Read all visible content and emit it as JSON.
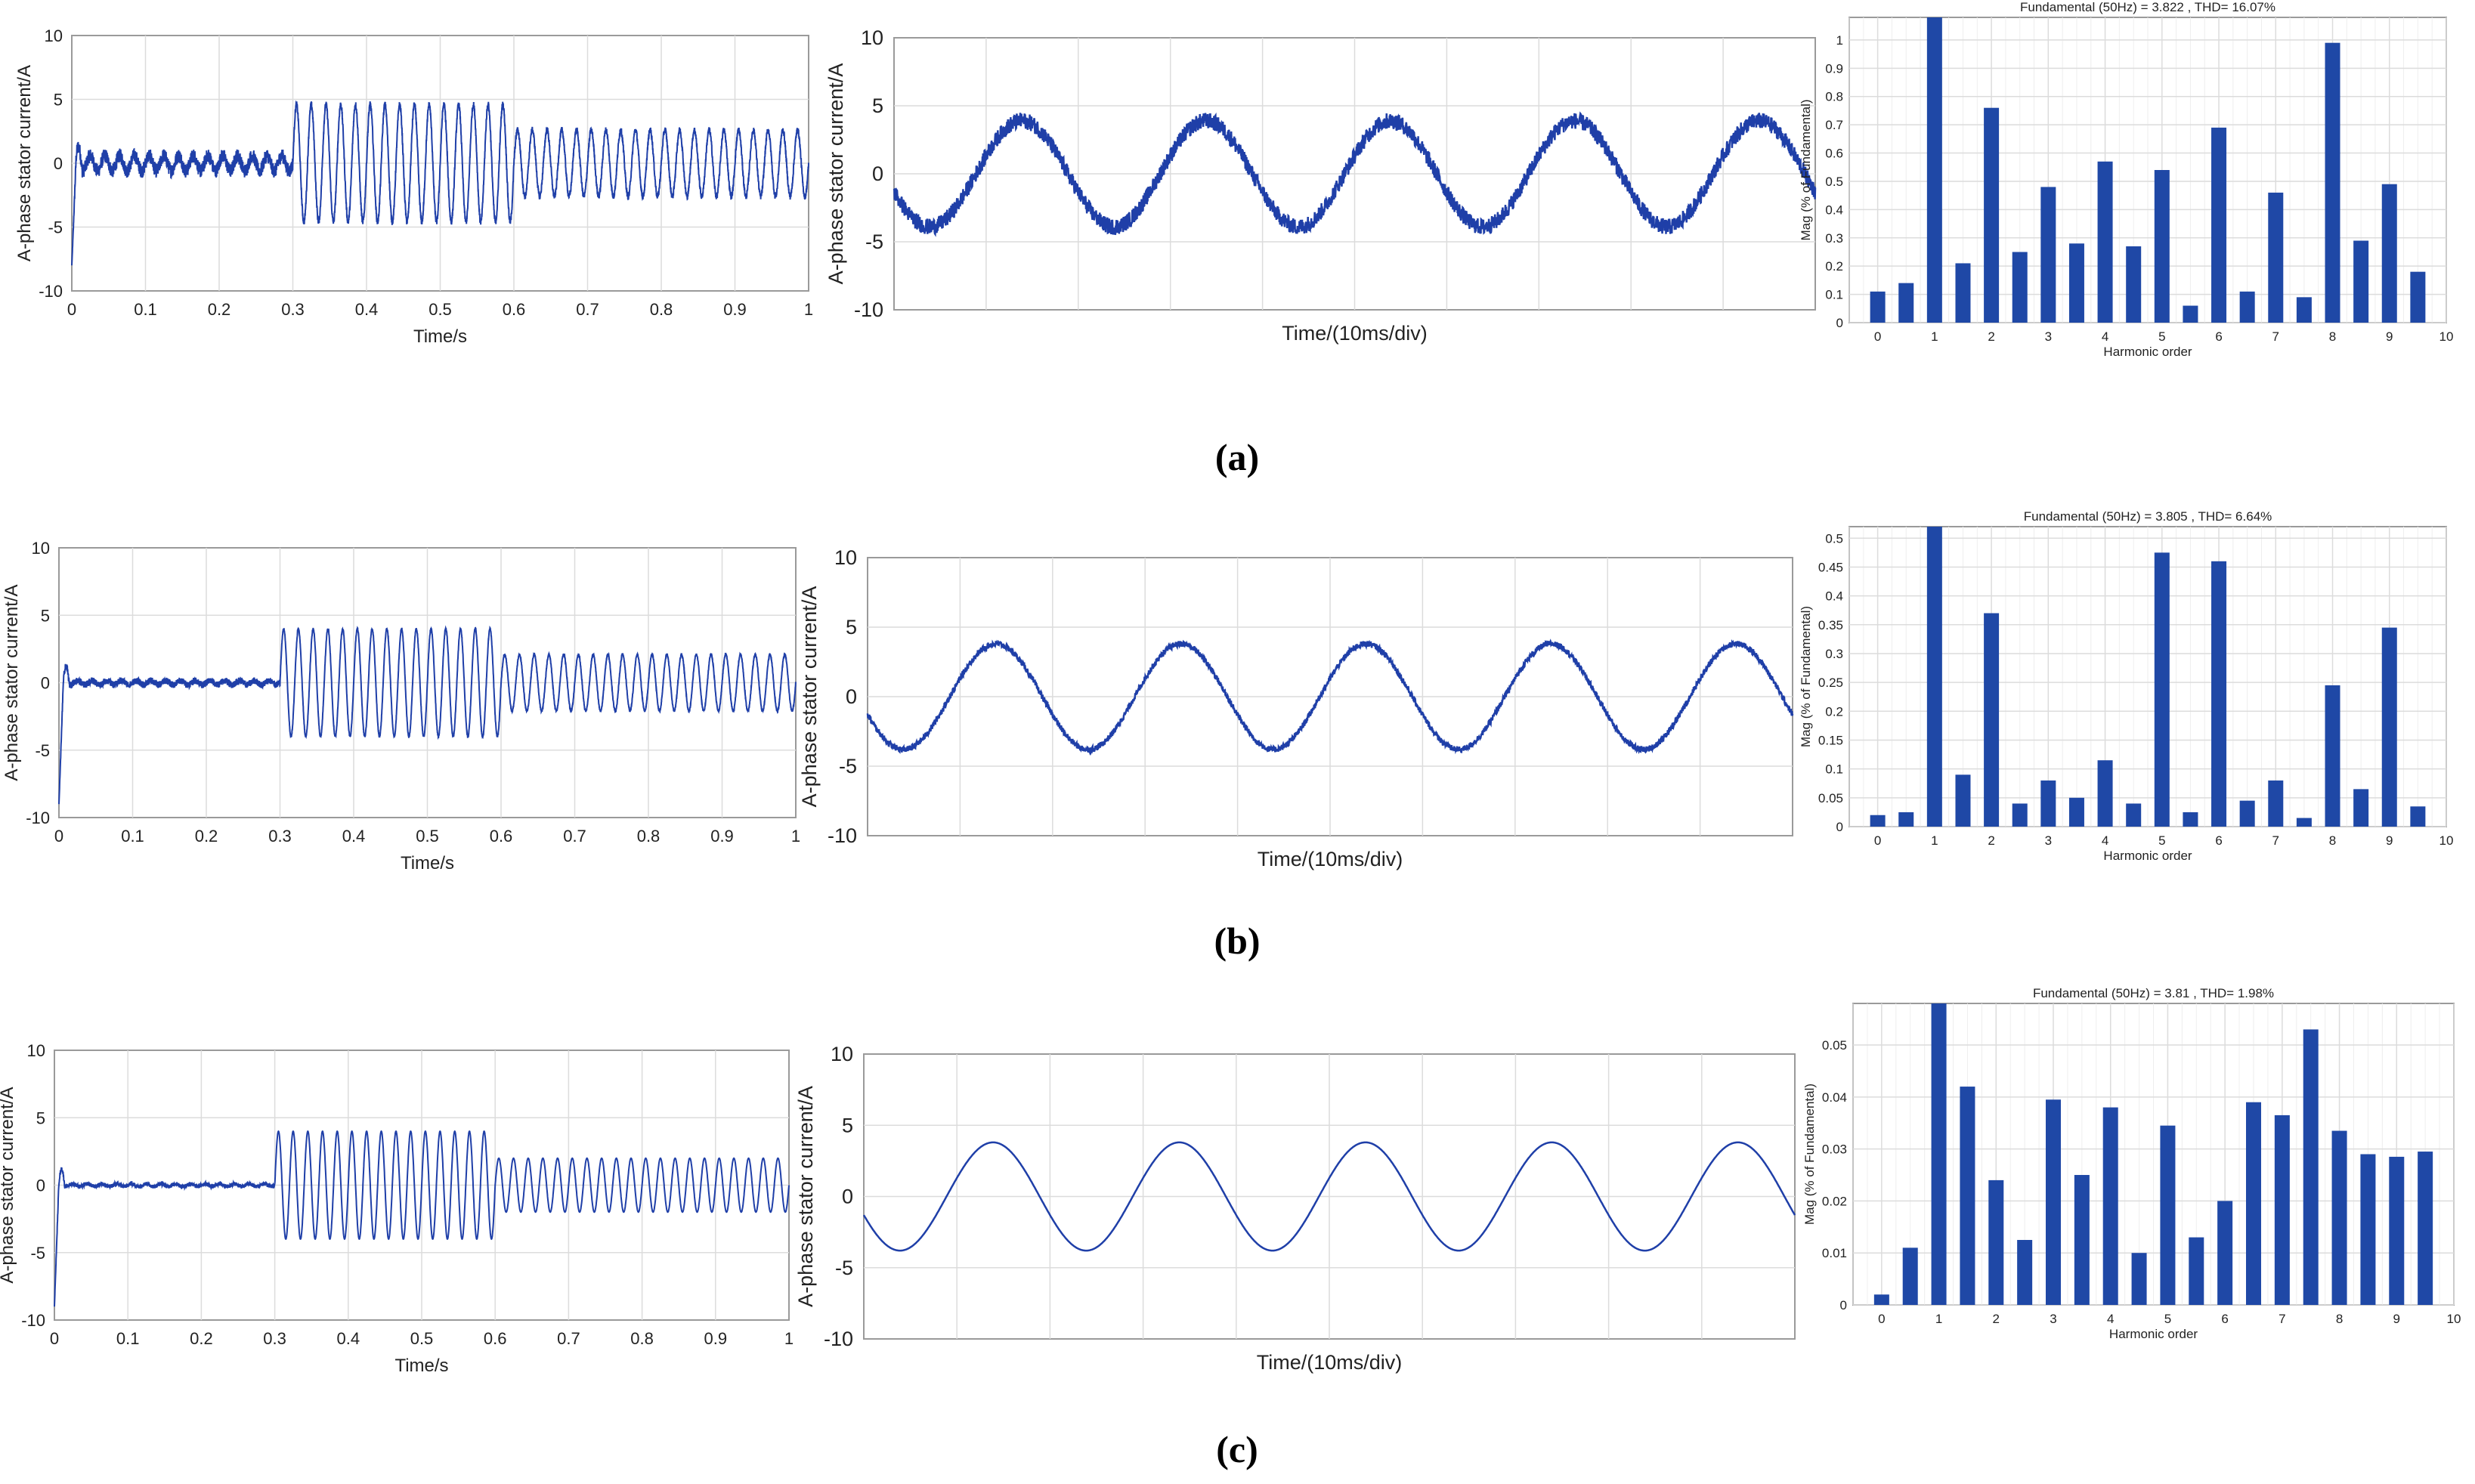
{
  "colors": {
    "trace": "#1f3fa8",
    "bar": "#1f48a6",
    "grid": "#dcdcdc",
    "frame": "#9a9a9a"
  },
  "captions": [
    "(a)",
    "(b)",
    "(c)"
  ],
  "rows": [
    {
      "caption": "(a)",
      "time_plot": {
        "ylabel": "A-phase stator current/A",
        "xlabel": "Time/s",
        "xlim": [
          0,
          1
        ],
        "ylim": [
          -10,
          10
        ],
        "xticks": [
          "0",
          "0.1",
          "0.2",
          "0.3",
          "0.4",
          "0.5",
          "0.6",
          "0.7",
          "0.8",
          "0.9",
          "1"
        ],
        "yticks": [
          "10",
          "5",
          "0",
          "-5",
          "-10"
        ],
        "segments": [
          {
            "t": [
              0,
              0.3
            ],
            "amplitude": 0.6,
            "noise": 0.55
          },
          {
            "t": [
              0.3,
              0.6
            ],
            "amplitude": 4.6,
            "noise": 0.25
          },
          {
            "t": [
              0.6,
              1.0
            ],
            "amplitude": 2.6,
            "noise": 0.25
          }
        ],
        "startup_spike": -8
      },
      "zoom_plot": {
        "ylabel": "A-phase stator current/A",
        "xlabel": "Time/(10ms/div)",
        "ylim": [
          -10,
          10
        ],
        "yticks": [
          "10",
          "5",
          "0",
          "-5",
          "-10"
        ],
        "amplitude": 3.9,
        "noise": 0.6,
        "cycles": 5
      },
      "fft_plot": {
        "title": "Fundamental (50Hz) = 3.822 , THD= 16.07%",
        "ylabel": "Mag (% of Fundamental)",
        "xlabel": "Harmonic order",
        "ylim": [
          0,
          1.08
        ],
        "yticks": [
          "0",
          "0.1",
          "0.2",
          "0.3",
          "0.4",
          "0.5",
          "0.6",
          "0.7",
          "0.8",
          "0.9",
          "1"
        ],
        "xticks": [
          "0",
          "1",
          "2",
          "3",
          "4",
          "5",
          "6",
          "7",
          "8",
          "9",
          "10"
        ]
      }
    },
    {
      "caption": "(b)",
      "time_plot": {
        "ylabel": "A-phase stator current/A",
        "xlabel": "Time/s",
        "xlim": [
          0,
          1
        ],
        "ylim": [
          -10,
          10
        ],
        "xticks": [
          "0",
          "0.1",
          "0.2",
          "0.3",
          "0.4",
          "0.5",
          "0.6",
          "0.7",
          "0.8",
          "0.9",
          "1"
        ],
        "yticks": [
          "10",
          "5",
          "0",
          "-5",
          "-10"
        ],
        "segments": [
          {
            "t": [
              0,
              0.3
            ],
            "amplitude": 0.15,
            "noise": 0.25
          },
          {
            "t": [
              0.3,
              0.6
            ],
            "amplitude": 4.0,
            "noise": 0.08
          },
          {
            "t": [
              0.6,
              1.0
            ],
            "amplitude": 2.1,
            "noise": 0.08
          }
        ],
        "startup_spike": -9
      },
      "zoom_plot": {
        "ylabel": "A-phase stator current/A",
        "xlabel": "Time/(10ms/div)",
        "ylim": [
          -10,
          10
        ],
        "yticks": [
          "10",
          "5",
          "0",
          "-5",
          "-10"
        ],
        "amplitude": 3.8,
        "noise": 0.22,
        "cycles": 5
      },
      "fft_plot": {
        "title": "Fundamental (50Hz) = 3.805 , THD= 6.64%",
        "ylabel": "Mag (% of Fundamental)",
        "xlabel": "Harmonic order",
        "ylim": [
          0,
          0.52
        ],
        "yticks": [
          "0",
          "0.05",
          "0.1",
          "0.15",
          "0.2",
          "0.25",
          "0.3",
          "0.35",
          "0.4",
          "0.45",
          "0.5"
        ],
        "xticks": [
          "0",
          "1",
          "2",
          "3",
          "4",
          "5",
          "6",
          "7",
          "8",
          "9",
          "10"
        ]
      }
    },
    {
      "caption": "(c)",
      "time_plot": {
        "ylabel": "A-phase stator current/A",
        "xlabel": "Time/s",
        "xlim": [
          0,
          1
        ],
        "ylim": [
          -10,
          10
        ],
        "xticks": [
          "0",
          "0.1",
          "0.2",
          "0.3",
          "0.4",
          "0.5",
          "0.6",
          "0.7",
          "0.8",
          "0.9",
          "1"
        ],
        "yticks": [
          "10",
          "5",
          "0",
          "-5",
          "-10"
        ],
        "segments": [
          {
            "t": [
              0,
              0.3
            ],
            "amplitude": 0.1,
            "noise": 0.15
          },
          {
            "t": [
              0.3,
              0.6
            ],
            "amplitude": 4.0,
            "noise": 0.0
          },
          {
            "t": [
              0.6,
              1.0
            ],
            "amplitude": 2.0,
            "noise": 0.0
          }
        ],
        "startup_spike": -9
      },
      "zoom_plot": {
        "ylabel": "A-phase stator current/A",
        "xlabel": "Time/(10ms/div)",
        "ylim": [
          -10,
          10
        ],
        "yticks": [
          "10",
          "5",
          "0",
          "-5",
          "-10"
        ],
        "amplitude": 3.8,
        "noise": 0.0,
        "cycles": 5
      },
      "fft_plot": {
        "title": "Fundamental (50Hz) = 3.81 , THD= 1.98%",
        "ylabel": "Mag (% of Fundamental)",
        "xlabel": "Harmonic order",
        "ylim": [
          0,
          0.058
        ],
        "yticks": [
          "0",
          "0.01",
          "0.02",
          "0.03",
          "0.04",
          "0.05"
        ],
        "xticks": [
          "0",
          "1",
          "2",
          "3",
          "4",
          "5",
          "6",
          "7",
          "8",
          "9",
          "10"
        ]
      }
    }
  ],
  "chart_data": [
    {
      "type": "bar",
      "title": "Fundamental (50Hz) = 3.822 , THD= 16.07%",
      "xlabel": "Harmonic order",
      "ylabel": "Mag (% of Fundamental)",
      "x": [
        0,
        0.5,
        1,
        1.5,
        2,
        2.5,
        3,
        3.5,
        4,
        4.5,
        5,
        5.5,
        6,
        6.5,
        7,
        7.5,
        8,
        8.5,
        9,
        9.5
      ],
      "values": [
        0.11,
        0.14,
        1.08,
        0.21,
        0.76,
        0.25,
        0.48,
        0.28,
        0.57,
        0.27,
        0.54,
        0.06,
        0.69,
        0.11,
        0.46,
        0.09,
        0.99,
        0.29,
        0.49,
        0.18
      ],
      "ylim": [
        0,
        1.08
      ],
      "xlim": [
        -0.5,
        10
      ],
      "grid": true
    },
    {
      "type": "bar",
      "title": "Fundamental (50Hz) = 3.805 , THD= 6.64%",
      "xlabel": "Harmonic order",
      "ylabel": "Mag (% of Fundamental)",
      "x": [
        0,
        0.5,
        1,
        1.5,
        2,
        2.5,
        3,
        3.5,
        4,
        4.5,
        5,
        5.5,
        6,
        6.5,
        7,
        7.5,
        8,
        8.5,
        9,
        9.5
      ],
      "values": [
        0.02,
        0.025,
        0.52,
        0.09,
        0.37,
        0.04,
        0.08,
        0.05,
        0.115,
        0.04,
        0.475,
        0.025,
        0.46,
        0.045,
        0.08,
        0.015,
        0.245,
        0.065,
        0.345,
        0.035
      ],
      "ylim": [
        0,
        0.52
      ],
      "xlim": [
        -0.5,
        10
      ],
      "grid": true
    },
    {
      "type": "bar",
      "title": "Fundamental (50Hz) = 3.81 , THD= 1.98%",
      "xlabel": "Harmonic order",
      "ylabel": "Mag (% of Fundamental)",
      "x": [
        0,
        0.5,
        1,
        1.5,
        2,
        2.5,
        3,
        3.5,
        4,
        4.5,
        5,
        5.5,
        6,
        6.5,
        7,
        7.5,
        8,
        8.5,
        9,
        9.5
      ],
      "values": [
        0.002,
        0.011,
        0.058,
        0.042,
        0.024,
        0.0125,
        0.0395,
        0.025,
        0.038,
        0.01,
        0.0345,
        0.013,
        0.02,
        0.039,
        0.0365,
        0.053,
        0.0335,
        0.029,
        0.0285,
        0.0295
      ],
      "ylim": [
        0,
        0.058
      ],
      "xlim": [
        -0.5,
        10
      ],
      "grid": true
    },
    {
      "type": "line",
      "ylabel": "A-phase stator current/A",
      "xlabel": "Time/s",
      "xlim": [
        0,
        1
      ],
      "ylim": [
        -10,
        10
      ],
      "series": [
        {
          "values_description_free": true,
          "x": [
            0,
            0.3,
            0.6,
            1.0
          ],
          "y_peak": [
            0.6,
            4.6,
            2.6,
            2.6
          ]
        }
      ]
    }
  ]
}
